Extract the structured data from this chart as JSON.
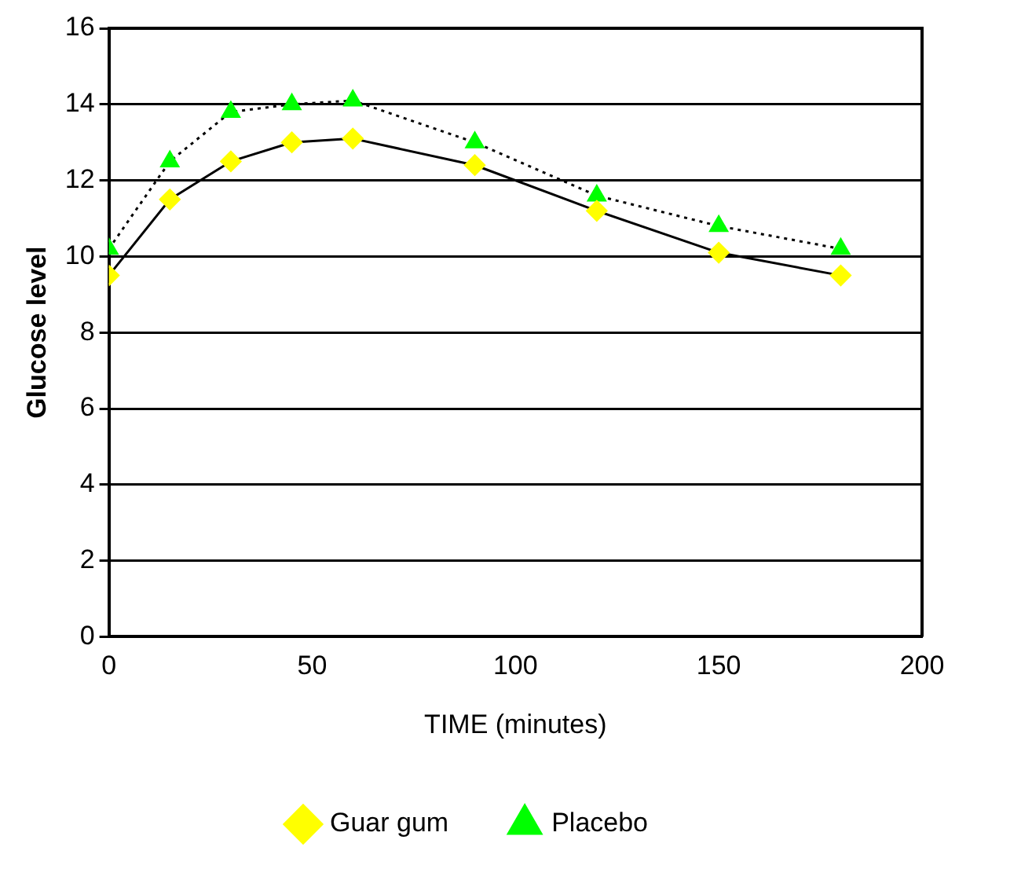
{
  "chart_data": {
    "type": "line",
    "xlabel": "TIME (minutes)",
    "ylabel": "Glucose level",
    "xlim": [
      0,
      200
    ],
    "xticks": [
      0,
      50,
      100,
      150,
      200
    ],
    "ylim": [
      0,
      16
    ],
    "yticks": [
      0,
      2,
      4,
      6,
      8,
      10,
      12,
      14,
      16
    ],
    "grid": "y",
    "legend": "bottom",
    "series": [
      {
        "name": "Guar gum",
        "color": "#ffff00",
        "marker": "diamond",
        "line_style": "solid",
        "x": [
          0,
          15,
          30,
          45,
          60,
          90,
          120,
          150,
          180
        ],
        "values": [
          9.5,
          11.5,
          12.5,
          13,
          13.1,
          12.4,
          11.2,
          10.1,
          9.5
        ]
      },
      {
        "name": "Placebo",
        "color": "#00ff00",
        "marker": "triangle",
        "line_style": "dotted",
        "x": [
          0,
          15,
          30,
          45,
          60,
          90,
          120,
          150,
          180
        ],
        "values": [
          10.2,
          12.5,
          13.8,
          14,
          14.1,
          13,
          11.6,
          10.8,
          10.2
        ]
      }
    ]
  }
}
